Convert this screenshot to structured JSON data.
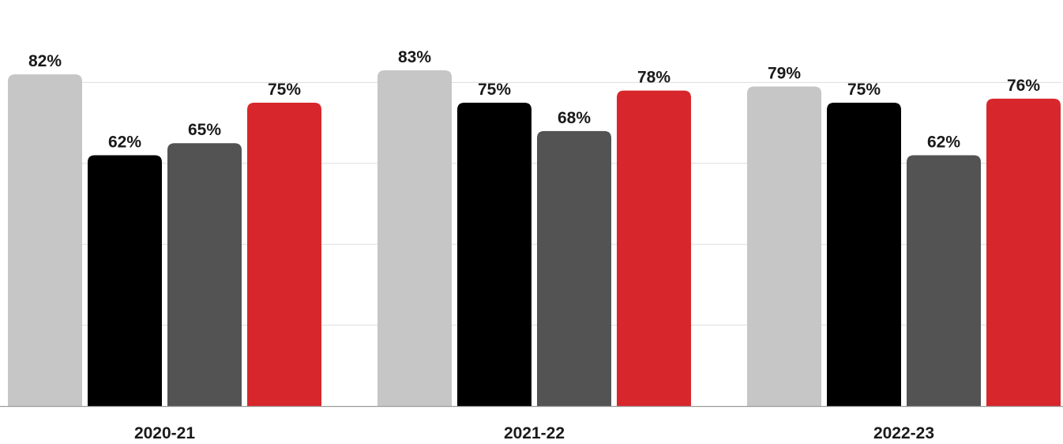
{
  "chart_data": {
    "type": "bar",
    "categories": [
      "2020-21",
      "2021-22",
      "2022-23"
    ],
    "series": [
      {
        "values": [
          82,
          83,
          79
        ],
        "color": "#c6c6c6"
      },
      {
        "values": [
          62,
          75,
          75
        ],
        "color": "#000000"
      },
      {
        "values": [
          65,
          68,
          62
        ],
        "color": "#535353"
      },
      {
        "values": [
          75,
          78,
          76
        ],
        "color": "#d7272c"
      }
    ],
    "data_labels": [
      [
        "82%",
        "62%",
        "65%",
        "75%"
      ],
      [
        "83%",
        "75%",
        "68%",
        "78%"
      ],
      [
        "79%",
        "75%",
        "62%",
        "76%"
      ]
    ],
    "ylim": [
      0,
      100
    ],
    "y_gridlines": [
      20,
      40,
      60,
      80
    ],
    "grid": true,
    "legend": "none",
    "title": "",
    "xlabel": "",
    "ylabel": ""
  }
}
